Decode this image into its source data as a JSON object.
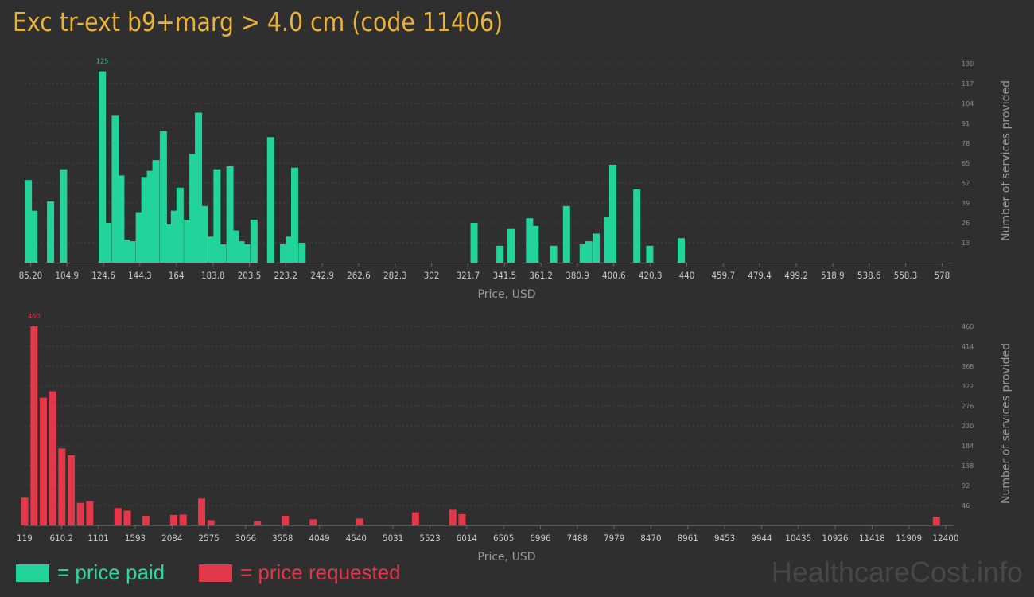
{
  "title": "Exc tr-ext b9+marg > 4.0 cm (code 11406)",
  "legend": {
    "paid": {
      "label": "= price paid",
      "color": "#22d49a"
    },
    "requested": {
      "label": "= price requested",
      "color": "#e3374a"
    }
  },
  "watermark": "HealthcareCost.info",
  "chart_data": [
    {
      "type": "bar",
      "name": "price paid",
      "color": "#22d49a",
      "xlabel": "Price, USD",
      "ylabel": "Number of services provided",
      "ylim": [
        0,
        130
      ],
      "yticks": [
        "13",
        "26",
        "39",
        "52",
        "65",
        "78",
        "91",
        "104",
        "117",
        "130"
      ],
      "grid": true,
      "x_range": [
        82,
        580
      ],
      "x_ticks": [
        {
          "label": "85.20",
          "value": 85.2
        },
        {
          "label": "104.9",
          "value": 104.9
        },
        {
          "label": "124.6",
          "value": 124.6
        },
        {
          "label": "144.3",
          "value": 144.3
        },
        {
          "label": "164",
          "value": 164
        },
        {
          "label": "183.8",
          "value": 183.8
        },
        {
          "label": "203.5",
          "value": 203.5
        },
        {
          "label": "223.2",
          "value": 223.2
        },
        {
          "label": "242.9",
          "value": 242.9
        },
        {
          "label": "262.6",
          "value": 262.6
        },
        {
          "label": "282.3",
          "value": 282.3
        },
        {
          "label": "302",
          "value": 302
        },
        {
          "label": "321.7",
          "value": 321.7
        },
        {
          "label": "341.5",
          "value": 341.5
        },
        {
          "label": "361.2",
          "value": 361.2
        },
        {
          "label": "380.9",
          "value": 380.9
        },
        {
          "label": "400.6",
          "value": 400.6
        },
        {
          "label": "420.3",
          "value": 420.3
        },
        {
          "label": "440",
          "value": 440
        },
        {
          "label": "459.7",
          "value": 459.7
        },
        {
          "label": "479.4",
          "value": 479.4
        },
        {
          "label": "499.2",
          "value": 499.2
        },
        {
          "label": "518.9",
          "value": 518.9
        },
        {
          "label": "538.6",
          "value": 538.6
        },
        {
          "label": "558.3",
          "value": 558.3
        },
        {
          "label": "578",
          "value": 578
        }
      ],
      "peak_label": "125",
      "bars": [
        {
          "x": 84,
          "y": 54
        },
        {
          "x": 87,
          "y": 34
        },
        {
          "x": 96,
          "y": 40
        },
        {
          "x": 103,
          "y": 61
        },
        {
          "x": 124,
          "y": 125
        },
        {
          "x": 127,
          "y": 26
        },
        {
          "x": 131,
          "y": 96
        },
        {
          "x": 134,
          "y": 57
        },
        {
          "x": 137,
          "y": 15
        },
        {
          "x": 140,
          "y": 14
        },
        {
          "x": 144,
          "y": 33
        },
        {
          "x": 147,
          "y": 56
        },
        {
          "x": 150,
          "y": 60
        },
        {
          "x": 153,
          "y": 67
        },
        {
          "x": 157,
          "y": 86
        },
        {
          "x": 160,
          "y": 25
        },
        {
          "x": 163,
          "y": 34
        },
        {
          "x": 166,
          "y": 49
        },
        {
          "x": 170,
          "y": 28
        },
        {
          "x": 173,
          "y": 71
        },
        {
          "x": 176,
          "y": 98
        },
        {
          "x": 179,
          "y": 37
        },
        {
          "x": 183,
          "y": 17
        },
        {
          "x": 186,
          "y": 61
        },
        {
          "x": 189,
          "y": 12
        },
        {
          "x": 193,
          "y": 63
        },
        {
          "x": 196,
          "y": 21
        },
        {
          "x": 199,
          "y": 14
        },
        {
          "x": 202,
          "y": 12
        },
        {
          "x": 206,
          "y": 28
        },
        {
          "x": 215,
          "y": 82
        },
        {
          "x": 222,
          "y": 12
        },
        {
          "x": 225,
          "y": 17
        },
        {
          "x": 228,
          "y": 62
        },
        {
          "x": 232,
          "y": 13
        },
        {
          "x": 325,
          "y": 26
        },
        {
          "x": 339,
          "y": 11
        },
        {
          "x": 345,
          "y": 22
        },
        {
          "x": 355,
          "y": 29
        },
        {
          "x": 358,
          "y": 24
        },
        {
          "x": 368,
          "y": 11
        },
        {
          "x": 375,
          "y": 37
        },
        {
          "x": 384,
          "y": 12
        },
        {
          "x": 387,
          "y": 14
        },
        {
          "x": 391,
          "y": 19
        },
        {
          "x": 397,
          "y": 30
        },
        {
          "x": 400,
          "y": 64
        },
        {
          "x": 413,
          "y": 48
        },
        {
          "x": 420,
          "y": 11
        },
        {
          "x": 437,
          "y": 16
        }
      ]
    },
    {
      "type": "bar",
      "name": "price requested",
      "color": "#e3374a",
      "xlabel": "Price, USD",
      "ylabel": "Number of services provided",
      "ylim": [
        0,
        460
      ],
      "yticks": [
        "46",
        "92",
        "138",
        "184",
        "230",
        "276",
        "322",
        "368",
        "414",
        "460"
      ],
      "grid": true,
      "x_range": [
        119,
        12400
      ],
      "x_ticks": [
        {
          "label": "119",
          "value": 119
        },
        {
          "label": "610.2",
          "value": 610.2
        },
        {
          "label": "1101",
          "value": 1101
        },
        {
          "label": "1593",
          "value": 1593
        },
        {
          "label": "2084",
          "value": 2084
        },
        {
          "label": "2575",
          "value": 2575
        },
        {
          "label": "3066",
          "value": 3066
        },
        {
          "label": "3558",
          "value": 3558
        },
        {
          "label": "4049",
          "value": 4049
        },
        {
          "label": "4540",
          "value": 4540
        },
        {
          "label": "5031",
          "value": 5031
        },
        {
          "label": "5523",
          "value": 5523
        },
        {
          "label": "6014",
          "value": 6014
        },
        {
          "label": "6505",
          "value": 6505
        },
        {
          "label": "6996",
          "value": 6996
        },
        {
          "label": "7488",
          "value": 7488
        },
        {
          "label": "7979",
          "value": 7979
        },
        {
          "label": "8470",
          "value": 8470
        },
        {
          "label": "8961",
          "value": 8961
        },
        {
          "label": "9453",
          "value": 9453
        },
        {
          "label": "9944",
          "value": 9944
        },
        {
          "label": "10435",
          "value": 10435
        },
        {
          "label": "10926",
          "value": 10926
        },
        {
          "label": "11418",
          "value": 11418
        },
        {
          "label": "11909",
          "value": 11909
        },
        {
          "label": "12400",
          "value": 12400
        }
      ],
      "peak_label": "460",
      "bars": [
        {
          "x": 119,
          "y": 64
        },
        {
          "x": 244,
          "y": 460
        },
        {
          "x": 368,
          "y": 295
        },
        {
          "x": 492,
          "y": 310
        },
        {
          "x": 615,
          "y": 178
        },
        {
          "x": 739,
          "y": 162
        },
        {
          "x": 863,
          "y": 52
        },
        {
          "x": 987,
          "y": 56
        },
        {
          "x": 1363,
          "y": 40
        },
        {
          "x": 1487,
          "y": 34
        },
        {
          "x": 1735,
          "y": 22
        },
        {
          "x": 2107,
          "y": 24
        },
        {
          "x": 2231,
          "y": 25
        },
        {
          "x": 2479,
          "y": 62
        },
        {
          "x": 2603,
          "y": 12
        },
        {
          "x": 3223,
          "y": 10
        },
        {
          "x": 3595,
          "y": 22
        },
        {
          "x": 3967,
          "y": 14
        },
        {
          "x": 4587,
          "y": 16
        },
        {
          "x": 5331,
          "y": 30
        },
        {
          "x": 5827,
          "y": 36
        },
        {
          "x": 5951,
          "y": 26
        },
        {
          "x": 12276,
          "y": 20
        }
      ]
    }
  ]
}
